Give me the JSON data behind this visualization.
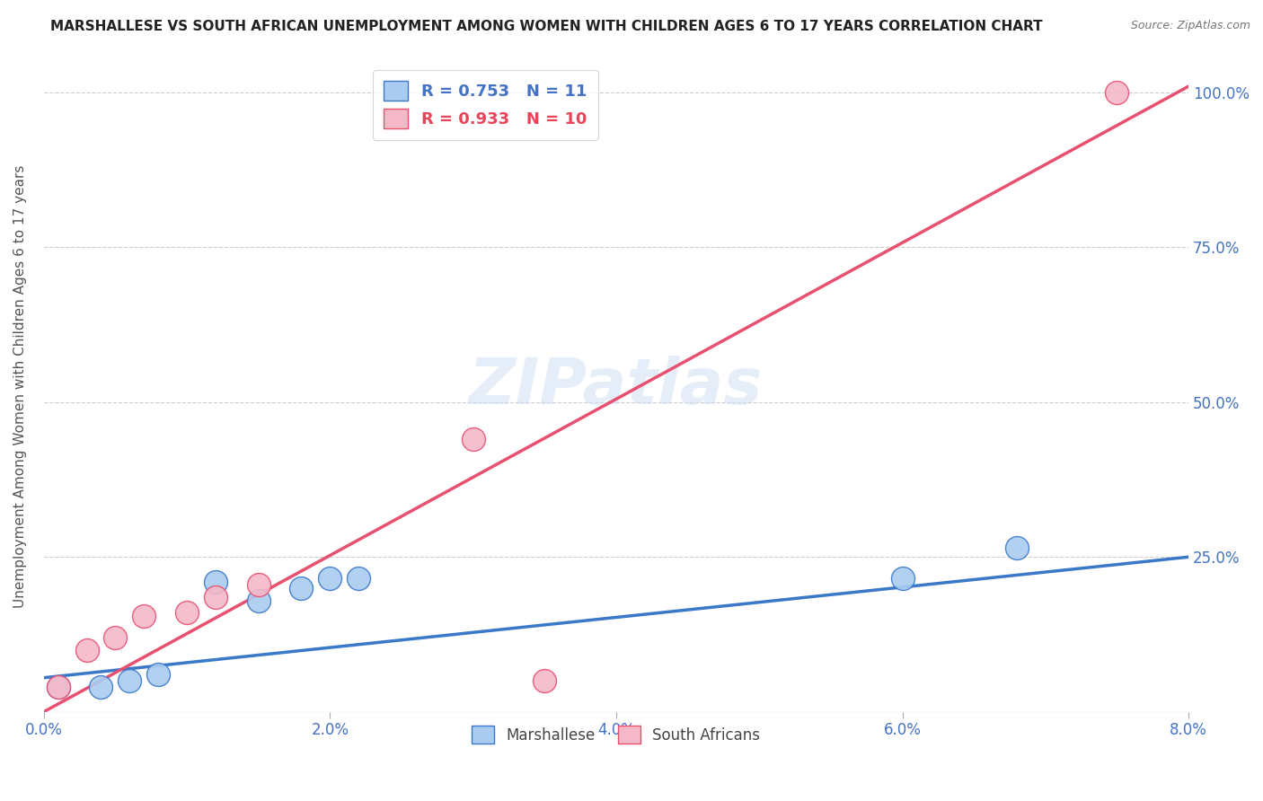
{
  "title": "MARSHALLESE VS SOUTH AFRICAN UNEMPLOYMENT AMONG WOMEN WITH CHILDREN AGES 6 TO 17 YEARS CORRELATION CHART",
  "source": "Source: ZipAtlas.com",
  "xlabel": "",
  "ylabel": "Unemployment Among Women with Children Ages 6 to 17 years",
  "xlim": [
    0.0,
    0.08
  ],
  "ylim": [
    0.0,
    1.05
  ],
  "xtick_labels": [
    "0.0%",
    "2.0%",
    "4.0%",
    "6.0%",
    "8.0%"
  ],
  "xtick_vals": [
    0.0,
    0.02,
    0.04,
    0.06,
    0.08
  ],
  "ytick_labels": [
    "100.0%",
    "75.0%",
    "50.0%",
    "25.0%"
  ],
  "ytick_vals": [
    1.0,
    0.75,
    0.5,
    0.25
  ],
  "marshallese_color": "#aaccf0",
  "marshallese_line_color": "#3a78c9",
  "south_african_color": "#f5b8c8",
  "south_african_line_color": "#e85070",
  "marshallese_R": 0.753,
  "marshallese_N": 11,
  "south_african_R": 0.933,
  "south_african_N": 10,
  "marshallese_x": [
    0.001,
    0.004,
    0.006,
    0.008,
    0.012,
    0.015,
    0.018,
    0.02,
    0.022,
    0.06,
    0.068
  ],
  "marshallese_y": [
    0.04,
    0.04,
    0.05,
    0.06,
    0.21,
    0.18,
    0.2,
    0.215,
    0.215,
    0.215,
    0.265
  ],
  "south_african_x": [
    0.001,
    0.003,
    0.005,
    0.007,
    0.01,
    0.012,
    0.015,
    0.03,
    0.035,
    0.075
  ],
  "south_african_y": [
    0.04,
    0.1,
    0.12,
    0.155,
    0.16,
    0.185,
    0.205,
    0.44,
    0.05,
    1.0
  ],
  "marshallese_trend_x0": 0.0,
  "marshallese_trend_y0": 0.055,
  "marshallese_trend_x1": 0.08,
  "marshallese_trend_y1": 0.25,
  "sa_trend_x0": 0.0,
  "sa_trend_y0": 0.0,
  "sa_trend_x1": 0.08,
  "sa_trend_y1": 1.01,
  "watermark": "ZIPatlas",
  "background_color": "#ffffff",
  "grid_color": "#cccccc",
  "title_fontsize": 11,
  "axis_label_color": "#555555",
  "tick_label_color": "#4472c4",
  "legend_R_color_marshallese": "#4472c4",
  "legend_R_color_south_african": "#e8445a"
}
